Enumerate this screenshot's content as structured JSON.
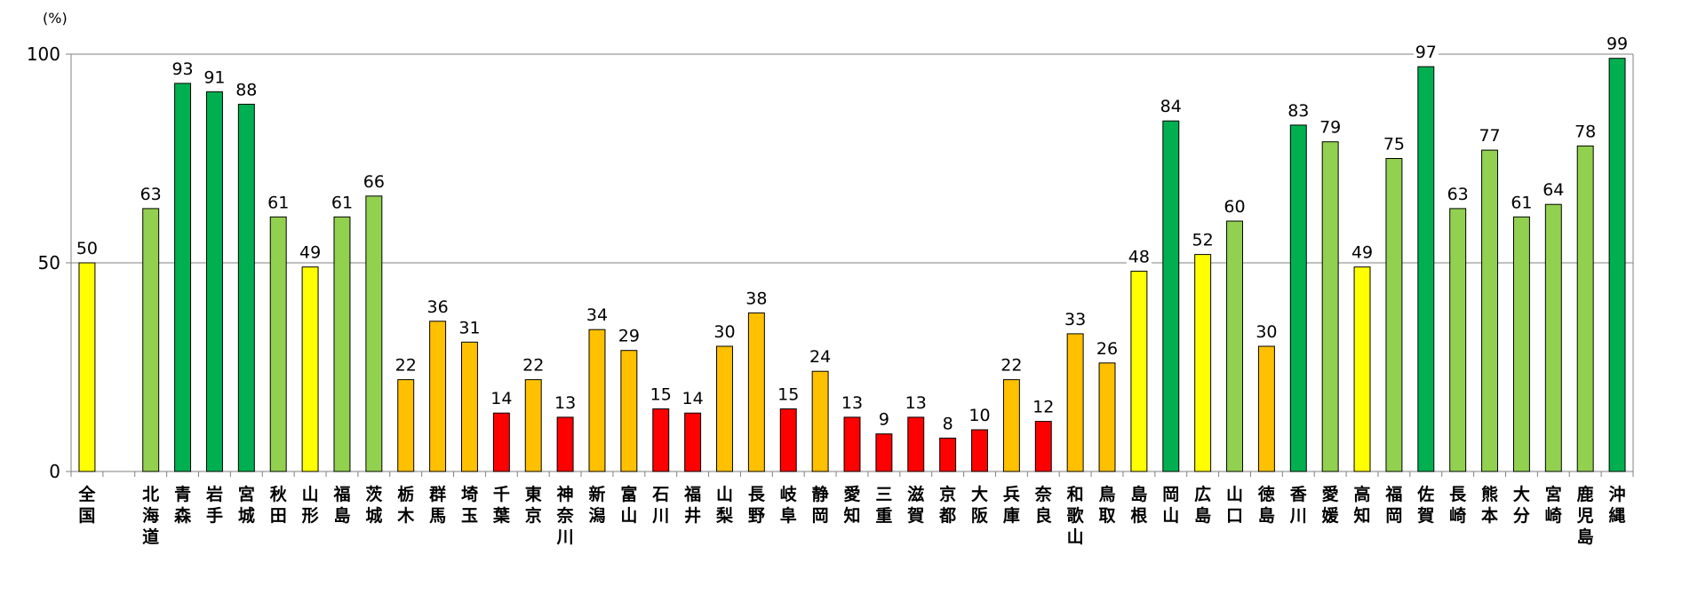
{
  "chart_data": {
    "type": "bar",
    "unit_label": "(%)",
    "ylim": [
      0,
      100
    ],
    "yticks": [
      0,
      50,
      100
    ],
    "grid": true,
    "categories": [
      "全国",
      "",
      "北海道",
      "青森",
      "岩手",
      "宮城",
      "秋田",
      "山形",
      "福島",
      "茨城",
      "栃木",
      "群馬",
      "埼玉",
      "千葉",
      "東京",
      "神奈川",
      "新潟",
      "富山",
      "石川",
      "福井",
      "山梨",
      "長野",
      "岐阜",
      "静岡",
      "愛知",
      "三重",
      "滋賀",
      "京都",
      "大阪",
      "兵庫",
      "奈良",
      "和歌山",
      "鳥取",
      "島根",
      "岡山",
      "広島",
      "山口",
      "徳島",
      "香川",
      "愛媛",
      "高知",
      "福岡",
      "佐賀",
      "長崎",
      "熊本",
      "大分",
      "宮崎",
      "鹿児島",
      "沖縄"
    ],
    "values": [
      50,
      null,
      63,
      93,
      91,
      88,
      61,
      49,
      61,
      66,
      22,
      36,
      31,
      14,
      22,
      13,
      34,
      29,
      15,
      14,
      30,
      38,
      15,
      24,
      13,
      9,
      13,
      8,
      10,
      22,
      12,
      33,
      26,
      48,
      84,
      52,
      60,
      30,
      83,
      79,
      49,
      75,
      97,
      63,
      77,
      61,
      64,
      78,
      99
    ],
    "bar_colors": [
      "#ffff00",
      null,
      "#92d050",
      "#00b050",
      "#00b050",
      "#00b050",
      "#92d050",
      "#ffff00",
      "#92d050",
      "#92d050",
      "#ffc000",
      "#ffc000",
      "#ffc000",
      "#ff0000",
      "#ffc000",
      "#ff0000",
      "#ffc000",
      "#ffc000",
      "#ff0000",
      "#ff0000",
      "#ffc000",
      "#ffc000",
      "#ff0000",
      "#ffc000",
      "#ff0000",
      "#ff0000",
      "#ff0000",
      "#ff0000",
      "#ff0000",
      "#ffc000",
      "#ff0000",
      "#ffc000",
      "#ffc000",
      "#ffff00",
      "#00b050",
      "#ffff00",
      "#92d050",
      "#ffc000",
      "#00b050",
      "#92d050",
      "#ffff00",
      "#92d050",
      "#00b050",
      "#92d050",
      "#92d050",
      "#92d050",
      "#92d050",
      "#92d050",
      "#00b050"
    ]
  }
}
